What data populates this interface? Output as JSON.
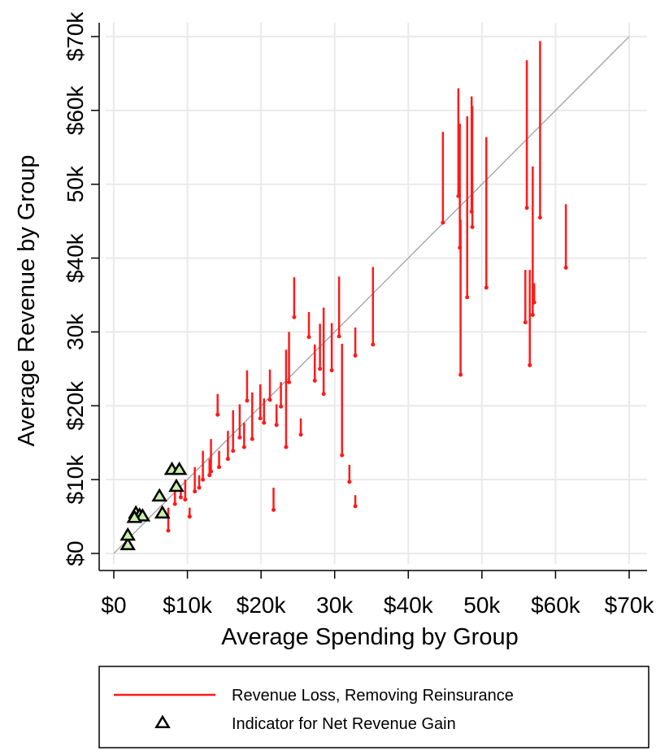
{
  "chart_data": {
    "type": "scatter",
    "x_label": "Average Spending by Group",
    "y_label": "Average Revenue by Group",
    "xlim": [
      0,
      70
    ],
    "ylim": [
      0,
      70
    ],
    "grid": true,
    "diagonal": true,
    "legend": "bottom",
    "xticks": [
      {
        "value": 0,
        "label": "$0"
      },
      {
        "value": 10,
        "label": "$10k"
      },
      {
        "value": 20,
        "label": "$20k"
      },
      {
        "value": 30,
        "label": "30k"
      },
      {
        "value": 40,
        "label": "$40k"
      },
      {
        "value": 50,
        "label": "50k"
      },
      {
        "value": 60,
        "label": "$60k"
      },
      {
        "value": 70,
        "label": "$70k"
      }
    ],
    "yticks": [
      {
        "value": 0,
        "label": "$0"
      },
      {
        "value": 10,
        "label": "$10k"
      },
      {
        "value": 20,
        "label": "$20k"
      },
      {
        "value": 30,
        "label": "30k"
      },
      {
        "value": 40,
        "label": "$40k"
      },
      {
        "value": 50,
        "label": "50k"
      },
      {
        "value": 60,
        "label": "$60k"
      },
      {
        "value": 70,
        "label": "$70k"
      }
    ],
    "series": [
      {
        "name": "Revenue Loss, Removing Reinsurance",
        "color": "#ff1a1a",
        "kind": "spike",
        "x": [
          44.7,
          46.8,
          47.0,
          47.1,
          48.0,
          48.6,
          48.7,
          50.6,
          56.1,
          55.9,
          56.5,
          56.9,
          57.1,
          57.9,
          61.4,
          35.2,
          32.8,
          31.0,
          32.0,
          32.8,
          30.6,
          29.6,
          28.5,
          28.0,
          27.3,
          26.5,
          24.5,
          23.8,
          23.4,
          25.4,
          21.7,
          22.7,
          21.2,
          19.9,
          18.1,
          18.8,
          17.1,
          16.2,
          14.1,
          15.5,
          13.2,
          12.1,
          11.0,
          9.7,
          8.3,
          7.4,
          10.3,
          17.7,
          20.4,
          22.1,
          14.3,
          13.0,
          11.6,
          9.1
        ],
        "y_high": [
          57.1,
          63.0,
          58.2,
          45.2,
          59.2,
          61.9,
          60.6,
          56.4,
          66.8,
          38.4,
          38.4,
          52.4,
          36.6,
          69.4,
          47.3,
          38.8,
          30.6,
          28.4,
          12.0,
          7.9,
          37.5,
          31.2,
          33.3,
          31.1,
          28.3,
          32.7,
          37.4,
          30.0,
          27.6,
          18.3,
          8.9,
          23.2,
          24.9,
          22.9,
          24.8,
          21.8,
          20.2,
          19.4,
          21.6,
          16.6,
          15.5,
          13.9,
          11.7,
          10.0,
          8.9,
          6.2,
          6.2,
          17.7,
          21.0,
          20.2,
          13.9,
          12.8,
          10.6,
          8.9
        ],
        "y_low": [
          44.8,
          48.4,
          41.4,
          24.2,
          34.7,
          46.3,
          44.2,
          36.0,
          46.8,
          31.3,
          25.5,
          32.3,
          34.0,
          45.5,
          38.7,
          28.3,
          26.8,
          13.3,
          9.7,
          6.4,
          29.4,
          24.8,
          21.6,
          25.0,
          23.4,
          29.3,
          32.0,
          23.2,
          14.4,
          16.1,
          5.9,
          19.9,
          20.8,
          18.3,
          20.7,
          15.5,
          15.7,
          13.9,
          18.8,
          12.8,
          11.1,
          10.0,
          8.4,
          7.3,
          6.7,
          3.1,
          5.0,
          14.4,
          17.7,
          17.4,
          11.7,
          10.6,
          8.9,
          7.6
        ]
      },
      {
        "name": "Indicator for Net Revenue Gain",
        "color": "#000000",
        "kind": "triangle",
        "x": [
          1.9,
          1.9,
          3.0,
          3.5,
          3.9,
          6.2,
          6.6,
          7.9,
          8.9,
          8.5,
          2.8
        ],
        "y": [
          1.1,
          2.4,
          5.4,
          5.1,
          5.0,
          7.7,
          5.4,
          11.3,
          11.3,
          9.0,
          4.8
        ]
      }
    ]
  }
}
